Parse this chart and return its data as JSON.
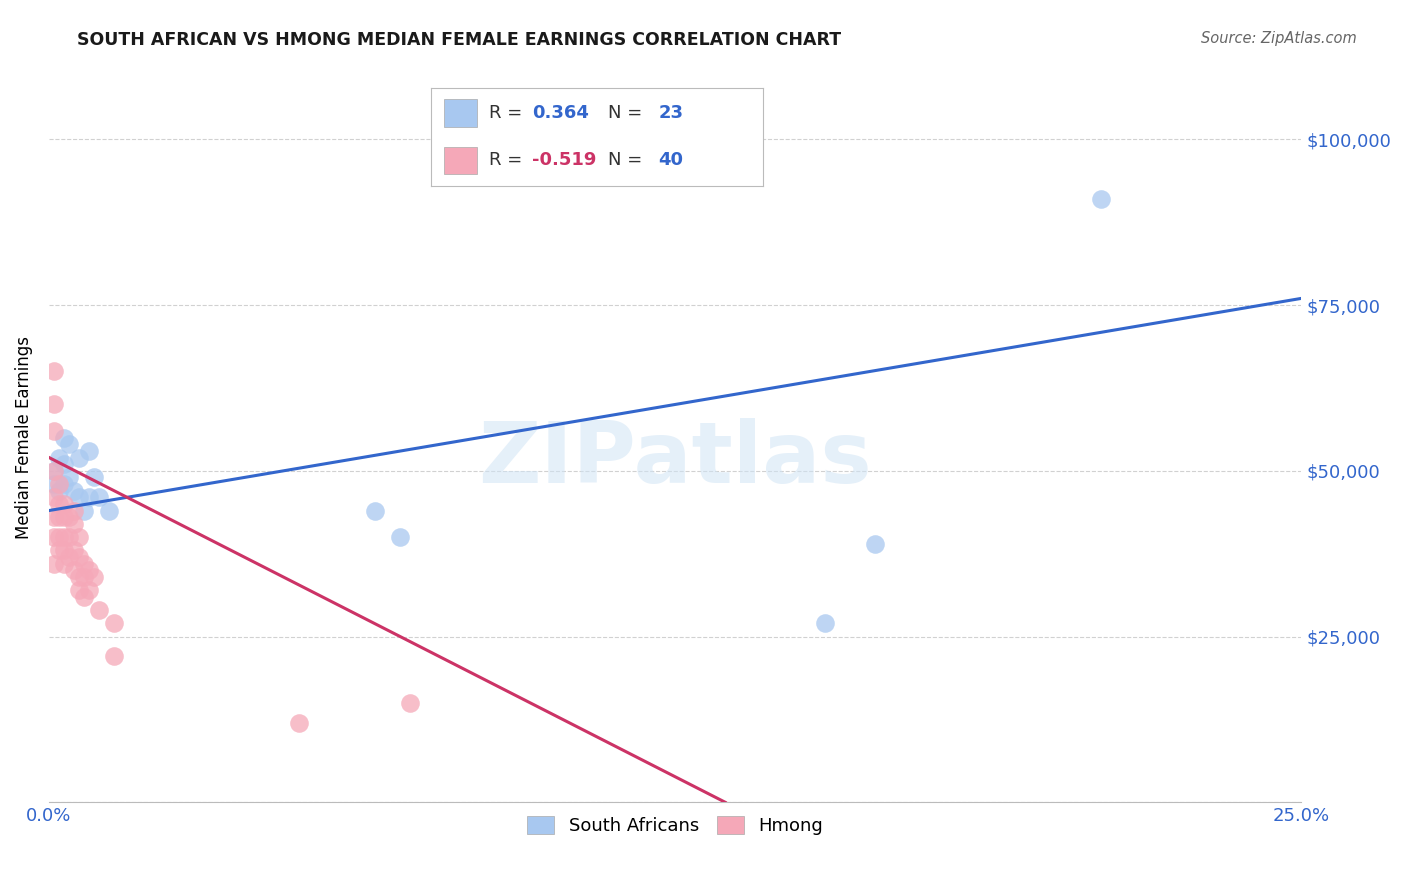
{
  "title": "SOUTH AFRICAN VS HMONG MEDIAN FEMALE EARNINGS CORRELATION CHART",
  "source": "Source: ZipAtlas.com",
  "ylabel": "Median Female Earnings",
  "xlim": [
    0.0,
    0.25
  ],
  "ylim": [
    0,
    110000
  ],
  "yticks": [
    0,
    25000,
    50000,
    75000,
    100000
  ],
  "xticks": [
    0.0,
    0.05,
    0.1,
    0.15,
    0.2,
    0.25
  ],
  "background_color": "#ffffff",
  "grid_color": "#cccccc",
  "watermark_text": "ZIPatlas",
  "south_african_color": "#a8c8f0",
  "hmong_color": "#f5a8b8",
  "south_african_line_color": "#3366cc",
  "hmong_line_color": "#cc3366",
  "sa_R_val": "0.364",
  "sa_N_val": "23",
  "hmong_R_val": "-0.519",
  "hmong_N_val": "40",
  "blue_color": "#3366cc",
  "pink_color": "#cc3366",
  "south_african_x": [
    0.001,
    0.001,
    0.002,
    0.002,
    0.003,
    0.003,
    0.003,
    0.004,
    0.004,
    0.005,
    0.006,
    0.006,
    0.007,
    0.008,
    0.008,
    0.009,
    0.01,
    0.012,
    0.065,
    0.07,
    0.155,
    0.165,
    0.21
  ],
  "south_african_y": [
    50000,
    48000,
    52000,
    47000,
    55000,
    51000,
    48000,
    54000,
    49000,
    47000,
    52000,
    46000,
    44000,
    53000,
    46000,
    49000,
    46000,
    44000,
    44000,
    40000,
    27000,
    39000,
    91000
  ],
  "hmong_x": [
    0.001,
    0.001,
    0.001,
    0.001,
    0.001,
    0.001,
    0.001,
    0.001,
    0.002,
    0.002,
    0.002,
    0.002,
    0.002,
    0.003,
    0.003,
    0.003,
    0.003,
    0.003,
    0.004,
    0.004,
    0.004,
    0.005,
    0.005,
    0.005,
    0.005,
    0.006,
    0.006,
    0.006,
    0.006,
    0.007,
    0.007,
    0.007,
    0.008,
    0.008,
    0.009,
    0.01,
    0.013,
    0.013,
    0.05,
    0.072
  ],
  "hmong_y": [
    65000,
    60000,
    56000,
    50000,
    46000,
    43000,
    40000,
    36000,
    48000,
    45000,
    43000,
    40000,
    38000,
    45000,
    43000,
    40000,
    38000,
    36000,
    43000,
    40000,
    37000,
    44000,
    42000,
    38000,
    35000,
    40000,
    37000,
    34000,
    32000,
    36000,
    34000,
    31000,
    35000,
    32000,
    34000,
    29000,
    27000,
    22000,
    12000,
    15000
  ],
  "sa_trendline_x": [
    0.0,
    0.25
  ],
  "sa_trendline_y": [
    44000,
    76000
  ],
  "hmong_trendline_x": [
    0.0,
    0.135
  ],
  "hmong_trendline_y": [
    52000,
    0
  ]
}
